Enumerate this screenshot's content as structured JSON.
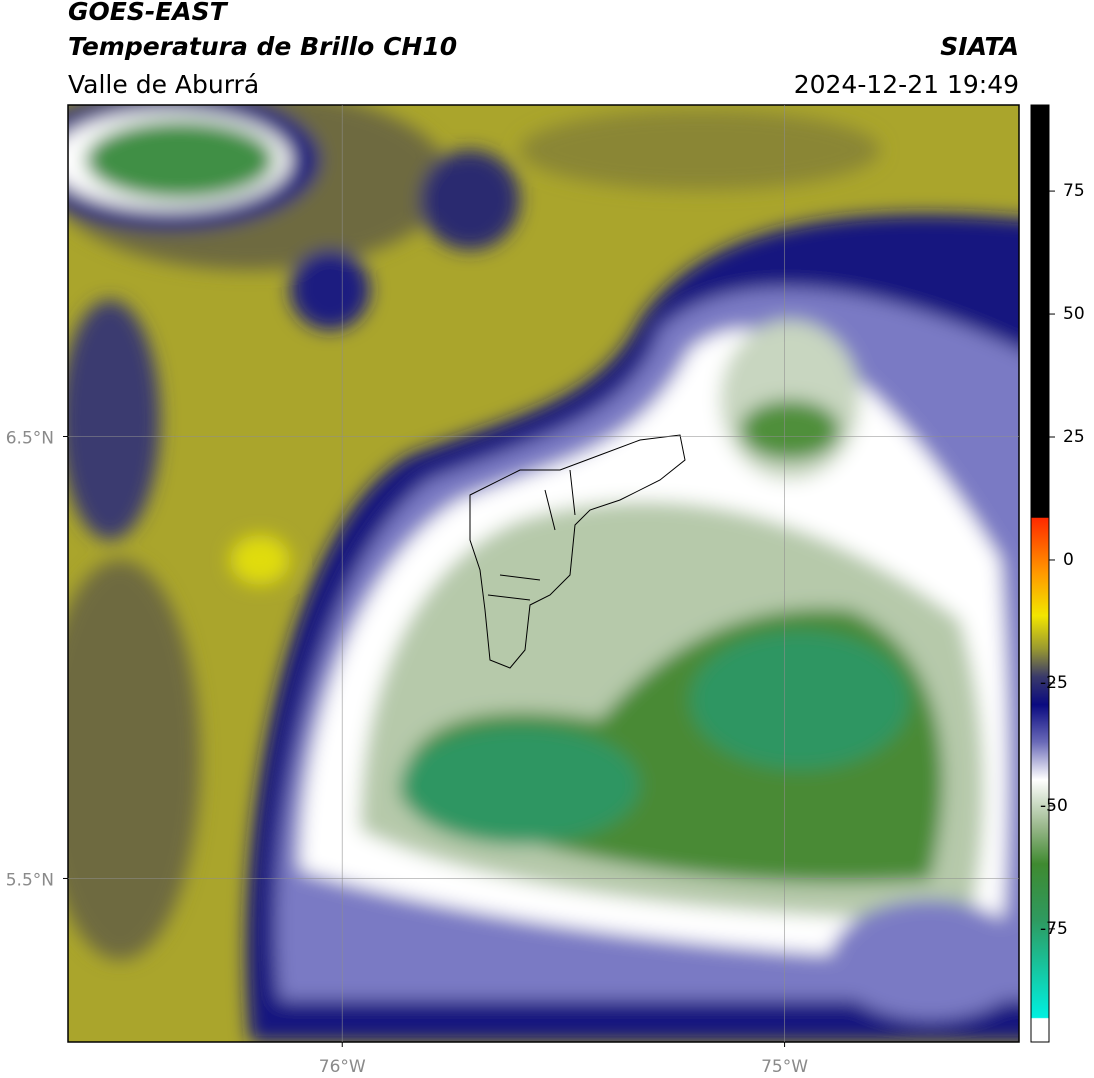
{
  "header": {
    "title": "GOES-EAST",
    "subtitle": "Temperatura de Brillo CH10",
    "region": "Valle de Aburrá",
    "source": "SIATA",
    "datetime": "2024-12-21 19:49"
  },
  "map": {
    "xlim": [
      -76.62,
      -74.47
    ],
    "ylim": [
      5.13,
      7.25
    ],
    "xticks": [
      {
        "value": -76,
        "label": "76°W"
      },
      {
        "value": -75,
        "label": "75°W"
      }
    ],
    "yticks": [
      {
        "value": 6.5,
        "label": "6.5°N"
      },
      {
        "value": 5.5,
        "label": "5.5°N"
      }
    ],
    "grid": true
  },
  "colorbar": {
    "lim": [
      -98,
      92.5
    ],
    "ticks": [
      75,
      50,
      25,
      0,
      -25,
      -50,
      -75
    ]
  }
}
